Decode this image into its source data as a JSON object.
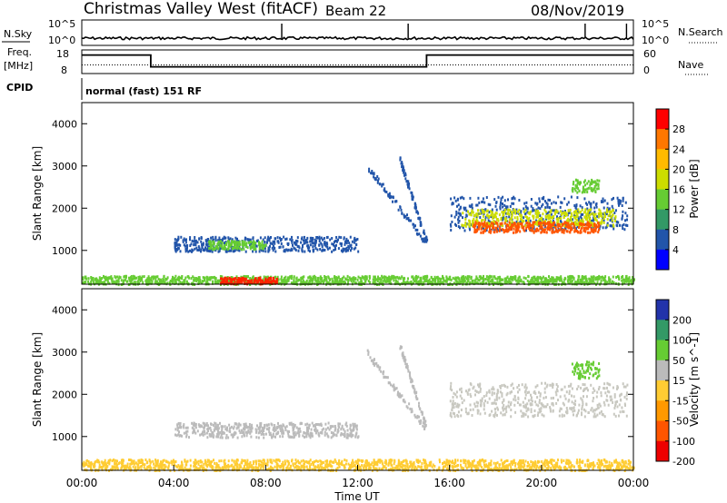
{
  "header": {
    "title": "Christmas Valley West (fitACF)",
    "beam": "Beam 22",
    "date": "08/Nov/2019"
  },
  "left_labels": {
    "nsky": "N.Sky",
    "freq_line1": "Freq.",
    "freq_line2": "[MHz]",
    "cpid": "CPID"
  },
  "right_labels": {
    "nsearch": "N.Search",
    "nave": "Nave"
  },
  "cpid_text": "normal (fast) 151 RF",
  "chart_data": [
    {
      "type": "line",
      "name": "noise-panel",
      "y_ticks_left": [
        "10^5",
        "10^0"
      ],
      "y_ticks_right": [
        "10^5",
        "10^0"
      ],
      "xlim": [
        0,
        24
      ],
      "noise_spikes_hours": [
        8.7,
        14.2,
        21.9,
        23.7
      ],
      "baseline_level": 0.28
    },
    {
      "type": "line",
      "name": "frequency-panel",
      "y_ticks_left": [
        "18",
        "8"
      ],
      "y_ticks_right": [
        "60",
        "0"
      ],
      "frequency_steps": [
        {
          "x": 0,
          "y": 17
        },
        {
          "x": 3.0,
          "y": 17
        },
        {
          "x": 3.0,
          "y": 10
        },
        {
          "x": 15.0,
          "y": 10
        },
        {
          "x": 15.0,
          "y": 17
        },
        {
          "x": 24,
          "y": 17
        }
      ],
      "nave_level": 22
    },
    {
      "type": "heatmap",
      "name": "power",
      "ylabel": "Slant Range [km]",
      "ylim": [
        200,
        4500
      ],
      "y_ticks": [
        1000,
        2000,
        3000,
        4000
      ],
      "colorbar_label": "Power [dB]",
      "colorbar_ticks": [
        "28",
        "24",
        "20",
        "16",
        "12",
        "8",
        "4"
      ],
      "colorbar_colors": [
        "#ff0000",
        "#ff7700",
        "#ffbb00",
        "#ccdd00",
        "#66cc33",
        "#339966",
        "#2255aa",
        "#0000ff"
      ],
      "bands": [
        {
          "x0": 4.0,
          "x1": 12.0,
          "r0": 1000,
          "r1": 1350,
          "color": "#2255aa"
        },
        {
          "x0": 5.5,
          "x1": 8.0,
          "r0": 1050,
          "r1": 1250,
          "color": "#66cc33"
        },
        {
          "x0": 16.0,
          "x1": 23.7,
          "r0": 1500,
          "r1": 2300,
          "color": "#2255aa"
        },
        {
          "x0": 16.5,
          "x1": 23.2,
          "r0": 1600,
          "r1": 2000,
          "color": "#ccdd00"
        },
        {
          "x0": 17.0,
          "x1": 22.5,
          "r0": 1450,
          "r1": 1700,
          "color": "#ff5500"
        },
        {
          "x0": 0.0,
          "x1": 24.0,
          "r0": 220,
          "r1": 420,
          "color": "#66cc33"
        },
        {
          "x0": 6.0,
          "x1": 8.5,
          "r0": 230,
          "r1": 380,
          "color": "#ff2200"
        },
        {
          "x0": 21.3,
          "x1": 22.5,
          "r0": 2400,
          "r1": 2700,
          "color": "#66cc33"
        }
      ],
      "streaks": [
        {
          "x0": 13.8,
          "x1": 15.0,
          "r0": 3200,
          "r1": 1200,
          "color": "#2255aa"
        },
        {
          "x0": 12.4,
          "x1": 14.9,
          "r0": 3000,
          "r1": 1250,
          "color": "#2255aa"
        }
      ]
    },
    {
      "type": "heatmap",
      "name": "velocity",
      "ylabel": "Slant Range [km]",
      "xlabel": "Time UT",
      "ylim": [
        200,
        4500
      ],
      "y_ticks": [
        1000,
        2000,
        3000,
        4000
      ],
      "x_ticks": [
        "00:00",
        "04:00",
        "08:00",
        "12:00",
        "16:00",
        "20:00",
        "00:00"
      ],
      "colorbar_label": "Velocity [m s^-1]",
      "colorbar_ticks": [
        "200",
        "100",
        "50",
        "15",
        "-15",
        "-50",
        "-100",
        "-200"
      ],
      "colorbar_colors": [
        "#2233aa",
        "#339966",
        "#66cc33",
        "#bbbbbb",
        "#ffcc33",
        "#ff9900",
        "#ff5500",
        "#ee0000"
      ],
      "bands": [
        {
          "x0": 4.0,
          "x1": 12.0,
          "r0": 1000,
          "r1": 1350,
          "color": "#bbbbbb"
        },
        {
          "x0": 16.0,
          "x1": 23.7,
          "r0": 1500,
          "r1": 2300,
          "color": "#c8c8c0"
        },
        {
          "x0": 0.0,
          "x1": 24.0,
          "r0": 220,
          "r1": 480,
          "color": "#ffcc33"
        },
        {
          "x0": 21.3,
          "x1": 22.5,
          "r0": 2400,
          "r1": 2800,
          "color": "#66cc33"
        }
      ],
      "streaks": [
        {
          "x0": 13.8,
          "x1": 15.0,
          "r0": 3200,
          "r1": 1200,
          "color": "#bbbbbb"
        },
        {
          "x0": 12.4,
          "x1": 14.9,
          "r0": 3000,
          "r1": 1250,
          "color": "#bbbbbb"
        }
      ]
    }
  ]
}
